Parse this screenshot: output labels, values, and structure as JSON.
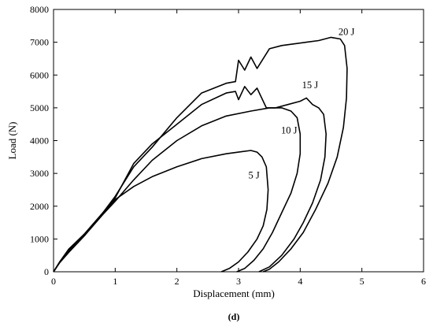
{
  "chart_data": {
    "type": "line",
    "xlabel": "Displacement (mm)",
    "ylabel": "Load (N)",
    "xlim": [
      0,
      6
    ],
    "ylim": [
      0,
      8000
    ],
    "xticks": [
      "0",
      "1",
      "2",
      "3",
      "4",
      "5",
      "6"
    ],
    "yticks": [
      "0",
      "1000",
      "2000",
      "3000",
      "4000",
      "5000",
      "6000",
      "7000",
      "8000"
    ],
    "grid": false,
    "legend": "none",
    "panel_label": "(d)",
    "series": [
      {
        "label": "5 J",
        "label_pos": [
          3.25,
          2850
        ],
        "x": [
          0,
          0.1,
          0.25,
          0.5,
          0.8,
          1.0,
          1.3,
          1.6,
          2.0,
          2.4,
          2.8,
          3.0,
          3.2,
          3.3,
          3.38,
          3.45,
          3.48,
          3.46,
          3.4,
          3.3,
          3.15,
          3.0,
          2.85,
          2.72
        ],
        "y": [
          0,
          300,
          650,
          1150,
          1800,
          2200,
          2600,
          2900,
          3200,
          3450,
          3600,
          3650,
          3700,
          3650,
          3500,
          3200,
          2500,
          1900,
          1400,
          1000,
          600,
          300,
          100,
          0
        ]
      },
      {
        "label": "10 J",
        "label_pos": [
          3.82,
          4220
        ],
        "x": [
          0,
          0.1,
          0.25,
          0.5,
          0.8,
          1.0,
          1.3,
          1.6,
          2.0,
          2.4,
          2.8,
          3.2,
          3.5,
          3.7,
          3.85,
          3.95,
          4.0,
          4.0,
          3.95,
          3.85,
          3.7,
          3.55,
          3.4,
          3.25,
          3.1,
          2.97
        ],
        "y": [
          0,
          280,
          600,
          1100,
          1750,
          2150,
          2800,
          3400,
          4000,
          4450,
          4750,
          4900,
          5000,
          5000,
          4900,
          4700,
          4200,
          3600,
          3000,
          2400,
          1800,
          1200,
          700,
          350,
          100,
          0
        ]
      },
      {
        "label": "15 J",
        "label_pos": [
          4.16,
          5600
        ],
        "x": [
          0,
          0.1,
          0.25,
          0.5,
          0.8,
          1.0,
          1.3,
          1.6,
          2.0,
          2.4,
          2.8,
          2.95,
          3.0,
          3.1,
          3.2,
          3.3,
          3.45,
          3.6,
          3.8,
          4.0,
          4.1,
          4.2,
          4.3,
          4.38,
          4.42,
          4.4,
          4.33,
          4.2,
          4.05,
          3.9,
          3.7,
          3.5,
          3.33
        ],
        "y": [
          0,
          300,
          700,
          1150,
          1800,
          2250,
          3300,
          3900,
          4500,
          5100,
          5450,
          5500,
          5250,
          5650,
          5400,
          5600,
          5000,
          5000,
          5100,
          5200,
          5300,
          5100,
          5000,
          4800,
          4200,
          3500,
          2800,
          2100,
          1500,
          1000,
          500,
          150,
          0
        ]
      },
      {
        "label": "20 J",
        "label_pos": [
          4.75,
          7220
        ],
        "x": [
          0,
          0.1,
          0.25,
          0.5,
          0.8,
          1.0,
          1.3,
          1.6,
          2.0,
          2.4,
          2.8,
          2.95,
          3.0,
          3.1,
          3.2,
          3.3,
          3.5,
          3.7,
          3.9,
          4.1,
          4.3,
          4.5,
          4.65,
          4.72,
          4.76,
          4.75,
          4.7,
          4.6,
          4.45,
          4.25,
          4.05,
          3.85,
          3.65,
          3.5,
          3.4
        ],
        "y": [
          0,
          280,
          600,
          1100,
          1800,
          2300,
          3200,
          3800,
          4700,
          5450,
          5750,
          5800,
          6450,
          6150,
          6550,
          6200,
          6800,
          6900,
          6950,
          7000,
          7050,
          7150,
          7100,
          6900,
          6200,
          5300,
          4400,
          3500,
          2700,
          1900,
          1200,
          700,
          300,
          80,
          0
        ]
      }
    ]
  }
}
